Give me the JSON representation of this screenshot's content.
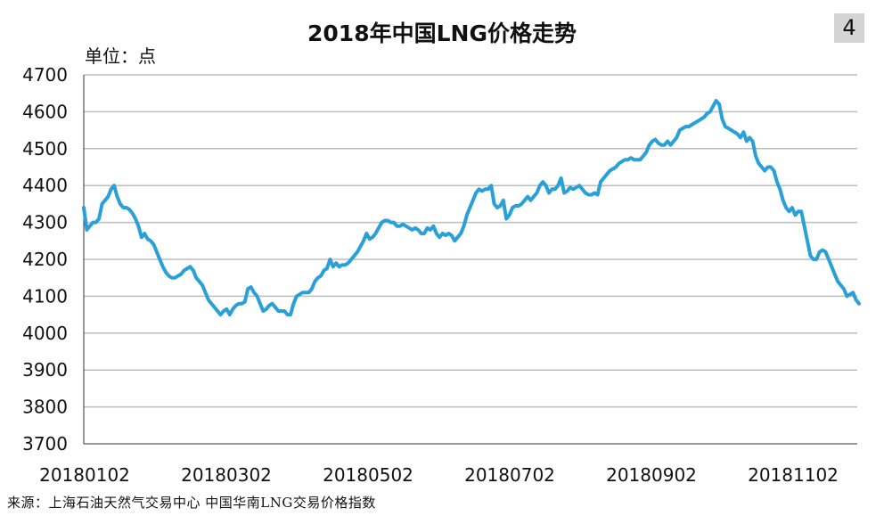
{
  "badge": "4",
  "chart_data": {
    "type": "line",
    "title": "2018年中国LNG价格走势",
    "unit_label": "单位：点",
    "ylim": [
      3700,
      4700
    ],
    "yticks": [
      3700,
      3800,
      3900,
      4000,
      4100,
      4200,
      4300,
      4400,
      4500,
      4600,
      4700
    ],
    "xtick_labels": [
      "20180102",
      "20180302",
      "20180502",
      "20180702",
      "20180902",
      "20181102"
    ],
    "grid": true,
    "line_color": "#2aa0d8",
    "series": [
      {
        "values": [
          4340,
          4280,
          4290,
          4300,
          4300,
          4310,
          4350,
          4360,
          4370,
          4390,
          4400,
          4370,
          4350,
          4340,
          4340,
          4335,
          4325,
          4310,
          4290,
          4260,
          4270,
          4255,
          4250,
          4240,
          4220,
          4200,
          4180,
          4165,
          4155,
          4150,
          4150,
          4155,
          4160,
          4170,
          4175,
          4180,
          4170,
          4150,
          4140,
          4130,
          4110,
          4090,
          4080,
          4070,
          4060,
          4050,
          4060,
          4065,
          4050,
          4065,
          4075,
          4080,
          4080,
          4085,
          4120,
          4125,
          4110,
          4100,
          4080,
          4060,
          4065,
          4075,
          4080,
          4070,
          4060,
          4060,
          4060,
          4050,
          4050,
          4080,
          4100,
          4105,
          4110,
          4110,
          4110,
          4120,
          4140,
          4150,
          4155,
          4170,
          4175,
          4200,
          4180,
          4190,
          4180,
          4185,
          4185,
          4190,
          4200,
          4210,
          4220,
          4235,
          4250,
          4270,
          4255,
          4260,
          4270,
          4285,
          4300,
          4305,
          4305,
          4300,
          4300,
          4290,
          4290,
          4295,
          4290,
          4285,
          4280,
          4285,
          4280,
          4270,
          4270,
          4285,
          4280,
          4290,
          4270,
          4260,
          4270,
          4265,
          4270,
          4265,
          4250,
          4260,
          4270,
          4290,
          4320,
          4340,
          4360,
          4380,
          4390,
          4385,
          4390,
          4390,
          4400,
          4350,
          4340,
          4345,
          4360,
          4310,
          4320,
          4340,
          4345,
          4345,
          4350,
          4360,
          4370,
          4360,
          4370,
          4380,
          4400,
          4410,
          4400,
          4380,
          4390,
          4390,
          4400,
          4420,
          4380,
          4385,
          4395,
          4390,
          4395,
          4400,
          4390,
          4380,
          4375,
          4375,
          4380,
          4375,
          4410,
          4420,
          4430,
          4440,
          4445,
          4450,
          4460,
          4465,
          4470,
          4470,
          4475,
          4470,
          4470,
          4470,
          4480,
          4490,
          4510,
          4520,
          4525,
          4515,
          4510,
          4510,
          4520,
          4510,
          4520,
          4530,
          4550,
          4555,
          4560,
          4560,
          4565,
          4570,
          4575,
          4580,
          4585,
          4595,
          4600,
          4615,
          4630,
          4620,
          4580,
          4560,
          4555,
          4550,
          4545,
          4540,
          4530,
          4545,
          4520,
          4530,
          4520,
          4480,
          4460,
          4450,
          4440,
          4450,
          4450,
          4440,
          4410,
          4390,
          4360,
          4340,
          4330,
          4340,
          4320,
          4330,
          4330,
          4290,
          4250,
          4210,
          4200,
          4200,
          4220,
          4225,
          4220,
          4200,
          4180,
          4160,
          4140,
          4130,
          4120,
          4100,
          4105,
          4110,
          4090,
          4080
        ]
      }
    ]
  },
  "source_text": "来源：上海石油天然气交易中心 中国华南LNG交易价格指数"
}
